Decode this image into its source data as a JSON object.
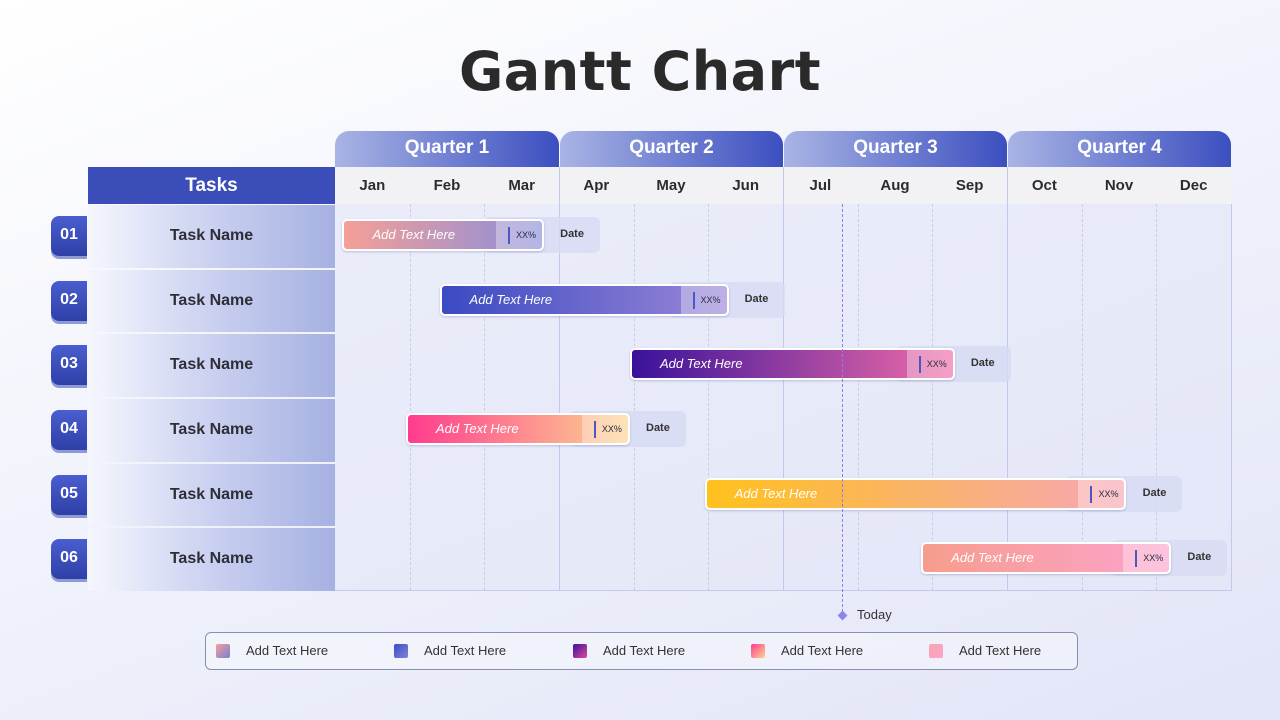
{
  "title": "Gantt Chart",
  "quarters": [
    "Quarter 1",
    "Quarter 2",
    "Quarter 3",
    "Quarter 4"
  ],
  "tasks_header": "Tasks",
  "months": [
    "Jan",
    "Feb",
    "Mar",
    "Apr",
    "May",
    "Jun",
    "Jul",
    "Aug",
    "Sep",
    "Oct",
    "Nov",
    "Dec"
  ],
  "tasks": [
    {
      "number": "01",
      "name": "Task Name",
      "bar_label": "Add Text Here",
      "percent": "XX%",
      "date": "Date",
      "start_month": 0.1,
      "end_month": 2.8,
      "gradient": [
        "#f59f97",
        "#8a8edb"
      ]
    },
    {
      "number": "02",
      "name": "Task Name",
      "bar_label": "Add Text Here",
      "percent": "XX%",
      "date": "Date",
      "start_month": 1.4,
      "end_month": 5.27,
      "gradient": [
        "#3a4ac2",
        "#9a86d8"
      ]
    },
    {
      "number": "03",
      "name": "Task Name",
      "bar_label": "Add Text Here",
      "percent": "XX%",
      "date": "Date",
      "start_month": 3.95,
      "end_month": 8.3,
      "gradient": [
        "#3a129a",
        "#f06ca8"
      ]
    },
    {
      "number": "04",
      "name": "Task Name",
      "bar_label": "Add Text Here",
      "percent": "XX%",
      "date": "Date",
      "start_month": 0.95,
      "end_month": 3.95,
      "gradient": [
        "#ff3c8e",
        "#fcd591"
      ]
    },
    {
      "number": "05",
      "name": "Task Name",
      "bar_label": "Add Text Here",
      "percent": "XX%",
      "date": "Date",
      "start_month": 4.95,
      "end_month": 10.6,
      "gradient": [
        "#ffc11c",
        "#f6a6b5"
      ]
    },
    {
      "number": "06",
      "name": "Task Name",
      "bar_label": "Add Text Here",
      "percent": "XX%",
      "date": "Date",
      "start_month": 7.85,
      "end_month": 11.2,
      "gradient": [
        "#f79d8d",
        "#fba3cc"
      ]
    }
  ],
  "today": {
    "label": "Today",
    "month": 6.75
  },
  "legend": [
    {
      "label": "Add Text Here",
      "gradient": [
        "#f59f97",
        "#7a7fd6"
      ]
    },
    {
      "label": "Add Text Here",
      "gradient": [
        "#3a4ac2",
        "#7d86d8"
      ]
    },
    {
      "label": "Add Text Here",
      "gradient": [
        "#3a129a",
        "#e0489a"
      ]
    },
    {
      "label": "Add Text Here",
      "gradient": [
        "#ff3c8e",
        "#fcd591"
      ]
    },
    {
      "label": "Add Text Here",
      "gradient": [
        "#f9a4b0",
        "#fba3cc"
      ]
    }
  ]
}
